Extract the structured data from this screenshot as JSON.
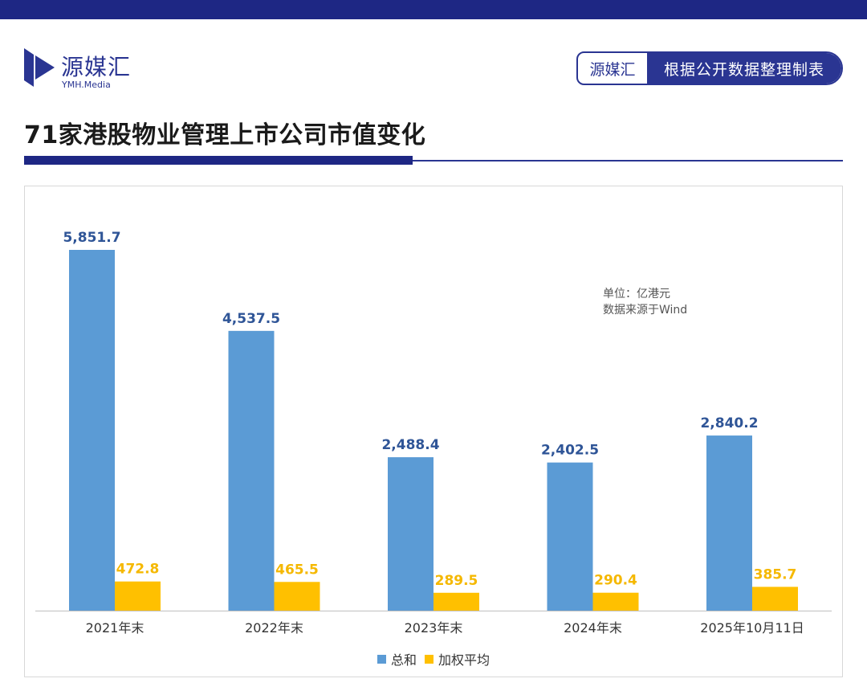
{
  "header": {
    "logo_cn": "源媒汇",
    "logo_en": "YMH.Media",
    "source_brand": "源媒汇",
    "source_text": "根据公开数据整理制表"
  },
  "title": "71家港股物业管理上市公司市值变化",
  "notes": {
    "unit": "单位：亿港元",
    "source": "数据来源于Wind"
  },
  "colors": {
    "navy": "#1e2784",
    "series_total": "#5b9bd5",
    "series_avg": "#ffc000",
    "label_total": "#2f5597",
    "label_avg": "#f5b800"
  },
  "chart_data": {
    "type": "bar",
    "title": "71家港股物业管理上市公司市值变化",
    "categories": [
      "2021年末",
      "2022年末",
      "2023年末",
      "2024年末",
      "2025年10月11日"
    ],
    "series": [
      {
        "name": "总和",
        "values": [
          5851.7,
          4537.5,
          2488.4,
          2402.5,
          2840.2
        ],
        "labels": [
          "5,851.7",
          "4,537.5",
          "2,488.4",
          "2,402.5",
          "2,840.2"
        ]
      },
      {
        "name": "加权平均",
        "values": [
          472.8,
          465.5,
          289.5,
          290.4,
          385.7
        ],
        "labels": [
          "472.8",
          "465.5",
          "289.5",
          "290.4",
          "385.7"
        ]
      }
    ],
    "ylim": [
      0,
      5851.7
    ],
    "grid": false,
    "legend_position": "bottom-center",
    "unit": "亿港元"
  }
}
